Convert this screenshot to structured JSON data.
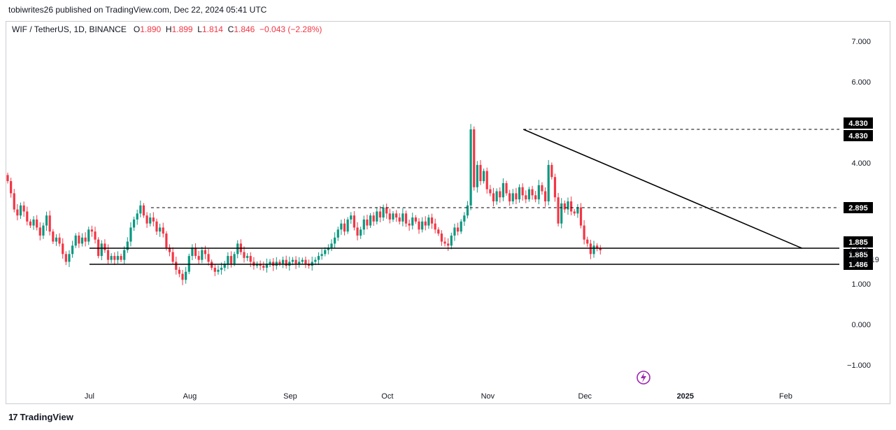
{
  "header": {
    "published": "tobiwrites26 published on TradingView.com, Dec 22, 2024 05:41 UTC"
  },
  "legend": {
    "symbol": "WIF / TetherUS, 1D, BINANCE",
    "o_label": "O",
    "o_value": "1.890",
    "h_label": "H",
    "h_value": "1.899",
    "l_label": "L",
    "l_value": "1.814",
    "c_label": "C",
    "c_value": "1.846",
    "change": "−0.043 (−2.28%)"
  },
  "brand": {
    "name": "TradingView",
    "logo_text": "17"
  },
  "colors": {
    "up": "#089981",
    "down": "#f23645",
    "line": "#000000",
    "text": "#131722",
    "grid": "#f0f3fa"
  },
  "chart_data": {
    "type": "candlestick",
    "title": "WIF / TetherUS, 1D, BINANCE",
    "y_ticks": [
      "7.000",
      "6.000",
      "4.000",
      "1.000",
      "0.000",
      "−1.000"
    ],
    "x_ticks": [
      "Jul",
      "Aug",
      "Sep",
      "Oct",
      "Nov",
      "Dec",
      "2025",
      "Feb"
    ],
    "ylim": [
      -1.4,
      7.8
    ],
    "price_labels": [
      {
        "text": "4.830",
        "value": 4.83
      },
      {
        "text": "4.830",
        "value": 4.83
      },
      {
        "text": "2.895",
        "value": 2.895
      },
      {
        "text": "1.885",
        "value": 1.885
      },
      {
        "text": "1.885",
        "value": 1.885
      },
      {
        "text": "1.486",
        "value": 1.486
      }
    ],
    "last_price": {
      "value": "1.846",
      "countdown": "18:18:19"
    },
    "closes": [
      3.55,
      3.25,
      2.85,
      2.7,
      2.95,
      2.8,
      2.55,
      2.45,
      2.6,
      2.4,
      2.2,
      2.45,
      2.7,
      2.3,
      2.05,
      2.15,
      2.0,
      1.75,
      1.55,
      1.75,
      1.95,
      2.2,
      2.0,
      2.15,
      2.05,
      2.35,
      2.3,
      2.1,
      1.7,
      2.0,
      1.85,
      1.6,
      1.7,
      1.6,
      1.7,
      1.6,
      1.85,
      2.05,
      2.4,
      2.6,
      2.75,
      2.95,
      2.7,
      2.5,
      2.65,
      2.55,
      2.3,
      2.4,
      2.25,
      1.9,
      1.8,
      1.55,
      1.35,
      1.25,
      1.1,
      1.3,
      1.7,
      1.9,
      1.7,
      1.6,
      1.85,
      1.75,
      1.55,
      1.4,
      1.3,
      1.35,
      1.4,
      1.5,
      1.7,
      1.5,
      1.75,
      2.0,
      1.8,
      1.65,
      1.7,
      1.55,
      1.45,
      1.5,
      1.45,
      1.4,
      1.5,
      1.55,
      1.45,
      1.55,
      1.5,
      1.6,
      1.45,
      1.55,
      1.6,
      1.5,
      1.55,
      1.6,
      1.5,
      1.45,
      1.55,
      1.6,
      1.7,
      1.75,
      1.85,
      1.9,
      2.0,
      2.15,
      2.35,
      2.5,
      2.3,
      2.6,
      2.7,
      2.4,
      2.2,
      2.35,
      2.6,
      2.45,
      2.7,
      2.55,
      2.8,
      2.65,
      2.9,
      2.75,
      2.6,
      2.75,
      2.65,
      2.55,
      2.75,
      2.5,
      2.45,
      2.65,
      2.55,
      2.35,
      2.55,
      2.45,
      2.65,
      2.5,
      2.35,
      2.25,
      2.05,
      2.0,
      1.95,
      2.2,
      2.4,
      2.3,
      2.55,
      2.7,
      2.95,
      4.83,
      3.4,
      3.95,
      3.55,
      3.8,
      3.35,
      3.25,
      3.05,
      3.3,
      3.15,
      3.5,
      3.25,
      3.05,
      3.25,
      3.1,
      3.4,
      3.2,
      3.1,
      3.35,
      3.2,
      3.1,
      3.45,
      3.3,
      3.05,
      3.95,
      3.65,
      3.15,
      2.5,
      3.0,
      2.85,
      3.05,
      2.8,
      2.75,
      2.9,
      2.45,
      2.1,
      2.0,
      1.75,
      1.95,
      1.88,
      1.846
    ],
    "lines": [
      {
        "name": "",
        "from": {
          "date": "2024-11-12",
          "value": 4.83
        },
        "to": {
          "date": "2025-02-06",
          "value": 1.885
        },
        "style": "solid"
      },
      {
        "name": "",
        "from": {
          "date": "2024-07-01",
          "value": 1.885
        },
        "to": "right-edge",
        "value": 1.885,
        "style": "solid"
      },
      {
        "name": "",
        "from": {
          "date": "2024-07-01",
          "value": 1.486
        },
        "to": "right-edge",
        "value": 1.486,
        "style": "solid"
      },
      {
        "name": "",
        "from": {
          "date": "2024-07-20",
          "value": 2.895
        },
        "to": "right-edge",
        "value": 2.895,
        "style": "dashed"
      },
      {
        "name": "",
        "from": {
          "date": "2024-11-12",
          "value": 4.83
        },
        "to": "right-edge",
        "value": 4.83,
        "style": "dashed"
      }
    ]
  }
}
